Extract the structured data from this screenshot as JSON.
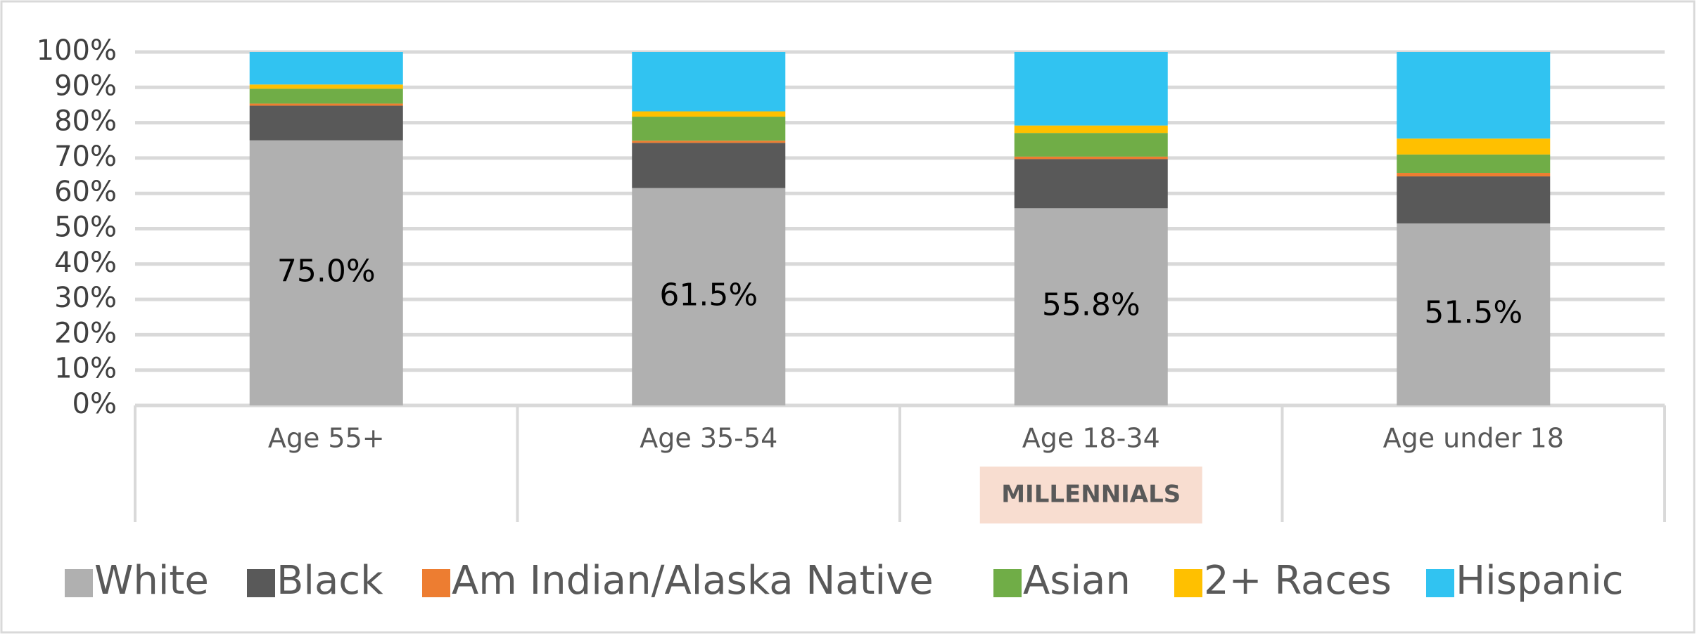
{
  "chart_data": {
    "type": "stacked-bar",
    "categories": [
      "Age 55+",
      "Age 35-54",
      "Age 18-34",
      "Age under 18"
    ],
    "series": [
      {
        "name": "White",
        "color": "#b0b0b0",
        "values": [
          75.0,
          61.5,
          55.8,
          51.5
        ],
        "value_labels": [
          "75.0%",
          "61.5%",
          "55.8%",
          "51.5%"
        ]
      },
      {
        "name": "Black",
        "color": "#595959",
        "values": [
          9.8,
          12.8,
          13.9,
          13.3
        ]
      },
      {
        "name": "Am Indian/Alaska Native",
        "color": "#ed7d31",
        "values": [
          0.6,
          0.6,
          0.7,
          1.0
        ]
      },
      {
        "name": "Asian",
        "color": "#70ad47",
        "values": [
          4.2,
          6.8,
          6.7,
          5.2
        ]
      },
      {
        "name": "2+ Races",
        "color": "#ffc000",
        "values": [
          1.2,
          1.5,
          2.1,
          4.5
        ]
      },
      {
        "name": "Hispanic",
        "color": "#31c3f1",
        "values": [
          9.2,
          16.8,
          20.8,
          24.5
        ]
      }
    ],
    "ylim": [
      0,
      100
    ],
    "yticks": [
      {
        "value": 0,
        "label": "0%"
      },
      {
        "value": 10,
        "label": "10%"
      },
      {
        "value": 20,
        "label": "20%"
      },
      {
        "value": 30,
        "label": "30%"
      },
      {
        "value": 40,
        "label": "40%"
      },
      {
        "value": 50,
        "label": "50%"
      },
      {
        "value": 60,
        "label": "60%"
      },
      {
        "value": 70,
        "label": "70%"
      },
      {
        "value": 80,
        "label": "80%"
      },
      {
        "value": 90,
        "label": "90%"
      },
      {
        "value": 100,
        "label": "100%"
      }
    ],
    "grid": true,
    "legend": "bottom",
    "annotations": [
      {
        "text": "MILLENNIALS",
        "category": 2,
        "color": "#f8ddd0"
      }
    ]
  }
}
